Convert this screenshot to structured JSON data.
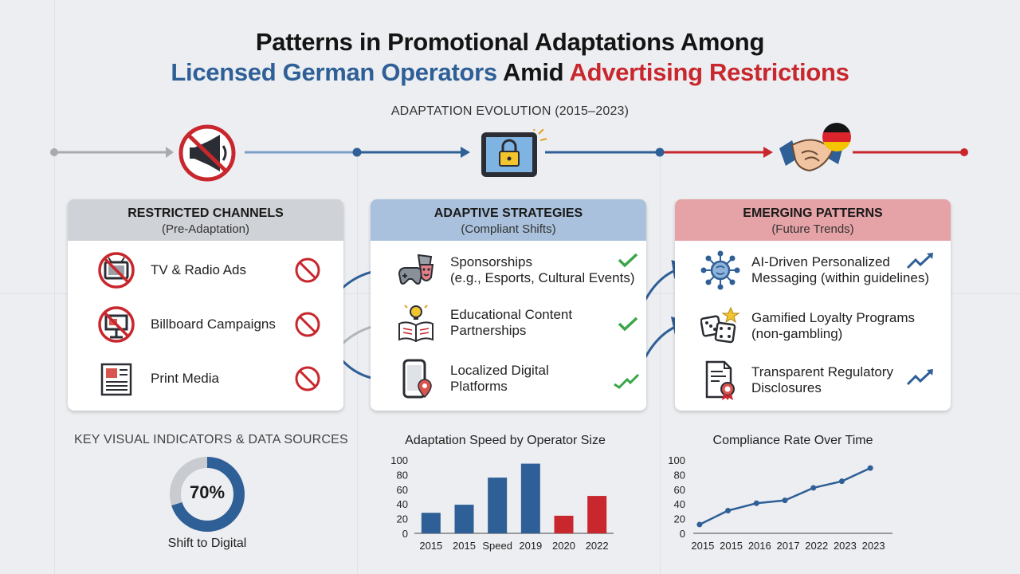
{
  "header": {
    "title_line1": "Patterns in Promotional Adaptations Among",
    "title_line2_a": "Licensed German Operators",
    "title_line2_b": "Amid",
    "title_line2_c": "Advertising Restrictions",
    "subtitle": "ADAPTATION EVOLUTION (2015–2023)"
  },
  "colors": {
    "blue": "#2f5f97",
    "red": "#c8272d",
    "gray": "#9a9ea4",
    "green": "#3aa648"
  },
  "timeline_icons": [
    "no-megaphone-icon",
    "tablet-lock-icon",
    "handshake-germany-flag-icon"
  ],
  "panels": {
    "restricted": {
      "heading": "RESTRICTED CHANNELS",
      "sub": "(Pre-Adaptation)",
      "items": [
        {
          "label": "TV & Radio Ads",
          "icon": "no-tv-icon",
          "status": "prohibited-icon"
        },
        {
          "label": "Billboard Campaigns",
          "icon": "no-billboard-icon",
          "status": "prohibited-icon"
        },
        {
          "label": "Print Media",
          "icon": "newspaper-icon",
          "status": "prohibited-icon"
        }
      ]
    },
    "adaptive": {
      "heading": "ADAPTIVE STRATEGIES",
      "sub": "(Compliant Shifts)",
      "items": [
        {
          "label1": "Sponsorships",
          "label2": "(e.g., Esports, Cultural Events)",
          "icon": "gamepad-masks-icon",
          "status": "check-icon"
        },
        {
          "label1": "Educational Content",
          "label2": "Partnerships",
          "icon": "book-lightbulb-icon",
          "status": "check-icon"
        },
        {
          "label1": "Localized Digital",
          "label2": "Platforms",
          "icon": "phone-location-icon",
          "status": "trend-check-icon"
        }
      ]
    },
    "emerging": {
      "heading": "EMERGING PATTERNS",
      "sub": "(Future Trends)",
      "items": [
        {
          "label1": "AI-Driven Personalized",
          "label2": "Messaging (within guidelines)",
          "icon": "ai-brain-icon",
          "status": "trend-up-icon"
        },
        {
          "label1": "Gamified Loyalty Programs",
          "label2": "(non-gambling)",
          "icon": "dice-star-icon",
          "status": ""
        },
        {
          "label1": "Transparent Regulatory",
          "label2": "Disclosures",
          "icon": "document-seal-icon",
          "status": "trend-up-icon"
        }
      ]
    }
  },
  "indicators": {
    "title": "KEY VISUAL INDICATORS & DATA SOURCES",
    "donut_value": "70%",
    "donut_fraction": 0.7,
    "donut_label": "Shift to Digital"
  },
  "chart_data": [
    {
      "type": "bar",
      "title": "Adaptation Speed by Operator Size",
      "categories": [
        "2015",
        "2015",
        "Speed",
        "2019",
        "2020",
        "2022"
      ],
      "values": [
        28,
        39,
        76,
        95,
        24,
        51
      ],
      "colors": [
        "#2f5f97",
        "#2f5f97",
        "#2f5f97",
        "#2f5f97",
        "#c8272d",
        "#c8272d"
      ],
      "yticks": [
        "100",
        "80",
        "60",
        "40",
        "20",
        "0"
      ],
      "ylim": [
        0,
        100
      ]
    },
    {
      "type": "line",
      "title": "Compliance Rate Over Time",
      "categories": [
        "2015",
        "2015",
        "2016",
        "2017",
        "2022",
        "2023",
        "2023"
      ],
      "values": [
        12,
        31,
        41,
        45,
        62,
        71,
        89
      ],
      "yticks": [
        "100",
        "80",
        "60",
        "40",
        "20",
        "0"
      ],
      "ylim": [
        0,
        100
      ]
    }
  ]
}
